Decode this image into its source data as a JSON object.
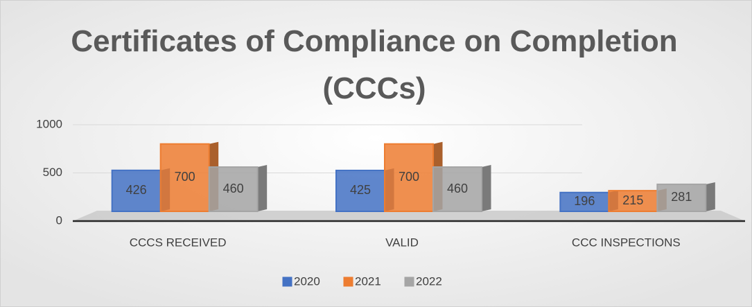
{
  "chart_data": {
    "type": "bar",
    "title": "Certificates of Compliance on Completion (CCCs)",
    "categories": [
      "CCCS RECEIVED",
      "VALID",
      "CCC INSPECTIONS"
    ],
    "series": [
      {
        "name": "2020",
        "color": "#4472c4",
        "values": [
          426,
          425,
          196
        ]
      },
      {
        "name": "2021",
        "color": "#ed7d31",
        "values": [
          700,
          700,
          215
        ]
      },
      {
        "name": "2022",
        "color": "#a5a5a5",
        "values": [
          460,
          460,
          281
        ]
      }
    ],
    "ylim": [
      0,
      1000
    ],
    "yticks": [
      0,
      500,
      1000
    ],
    "grid": true,
    "legend": "bottom"
  }
}
